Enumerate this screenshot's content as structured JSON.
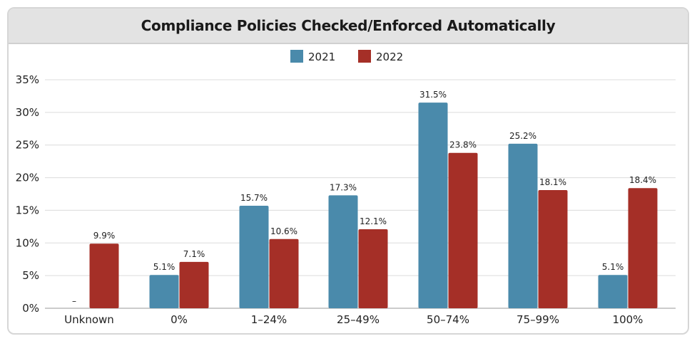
{
  "chart_data": {
    "type": "bar",
    "title": "Compliance Policies Checked/Enforced Automatically",
    "categories": [
      "Unknown",
      "0%",
      "1–24%",
      "25–49%",
      "50–74%",
      "75–99%",
      "100%"
    ],
    "series": [
      {
        "name": "2021",
        "color": "#4a8aab",
        "values": [
          null,
          5.1,
          15.7,
          17.3,
          31.5,
          25.2,
          5.1
        ],
        "labels": [
          "–",
          "5.1%",
          "15.7%",
          "17.3%",
          "31.5%",
          "25.2%",
          "5.1%"
        ]
      },
      {
        "name": "2022",
        "color": "#a52f27",
        "values": [
          9.9,
          7.1,
          10.6,
          12.1,
          23.8,
          18.1,
          18.4
        ],
        "labels": [
          "9.9%",
          "7.1%",
          "10.6%",
          "12.1%",
          "23.8%",
          "18.1%",
          "18.4%"
        ]
      }
    ],
    "ylim": [
      0,
      35
    ],
    "yticks": [
      0,
      5,
      10,
      15,
      20,
      25,
      30,
      35
    ],
    "ytick_labels": [
      "0%",
      "5%",
      "10%",
      "15%",
      "20%",
      "25%",
      "30%",
      "35%"
    ],
    "grid": true,
    "legend": "top-center",
    "xlabel": "",
    "ylabel": ""
  }
}
